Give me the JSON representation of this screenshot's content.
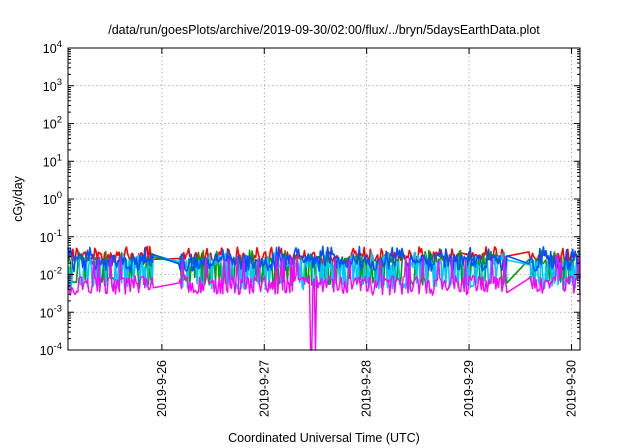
{
  "chart_data": {
    "type": "line",
    "title": "/data/run/goesPlots/archive/2019-09-30/02:00/flux/../bryn/5daysEarthData.plot",
    "xlabel": "Coordinated Universal Time (UTC)",
    "ylabel": "cGy/day",
    "yscale": "log",
    "ylim": [
      0.0001,
      10000
    ],
    "xlim": [
      "2019-09-25 02:00",
      "2019-09-30 02:00"
    ],
    "y_ticks": [
      {
        "value": 0.0001,
        "base": "10",
        "exp": "-4"
      },
      {
        "value": 0.001,
        "base": "10",
        "exp": "-3"
      },
      {
        "value": 0.01,
        "base": "10",
        "exp": "-2"
      },
      {
        "value": 0.1,
        "base": "10",
        "exp": "-1"
      },
      {
        "value": 1,
        "base": "10",
        "exp": "0"
      },
      {
        "value": 10,
        "base": "10",
        "exp": "1"
      },
      {
        "value": 100,
        "base": "10",
        "exp": "2"
      },
      {
        "value": 1000,
        "base": "10",
        "exp": "3"
      },
      {
        "value": 10000,
        "base": "10",
        "exp": "4"
      }
    ],
    "x_ticks": [
      {
        "value": "2019-09-26 00:00",
        "label": "2019-9-26"
      },
      {
        "value": "2019-09-27 00:00",
        "label": "2019-9-27"
      },
      {
        "value": "2019-09-28 00:00",
        "label": "2019-9-28"
      },
      {
        "value": "2019-09-29 00:00",
        "label": "2019-9-29"
      },
      {
        "value": "2019-09-30 00:00",
        "label": "2019-9-30"
      }
    ],
    "grid": true,
    "data_gaps": [
      [
        "2019-09-25 22:00",
        "2019-09-26 04:00"
      ],
      [
        "2019-09-29 09:00",
        "2019-09-29 14:00"
      ]
    ],
    "dropouts": [
      "2019-09-27 11:00",
      "2019-09-27 12:00"
    ],
    "series": [
      {
        "color": "#ff0000",
        "base": 0.032,
        "low": 0.022,
        "high": 0.05
      },
      {
        "color": "#00a000",
        "base": 0.024,
        "low": 0.0065,
        "high": 0.04
      },
      {
        "color": "#00c8ff",
        "base": 0.02,
        "low": 0.005,
        "high": 0.035
      },
      {
        "color": "#0050ff",
        "base": 0.028,
        "low": 0.015,
        "high": 0.05
      },
      {
        "color": "#ff00ff",
        "base": 0.0075,
        "low": 0.0035,
        "high": 0.03
      }
    ]
  }
}
